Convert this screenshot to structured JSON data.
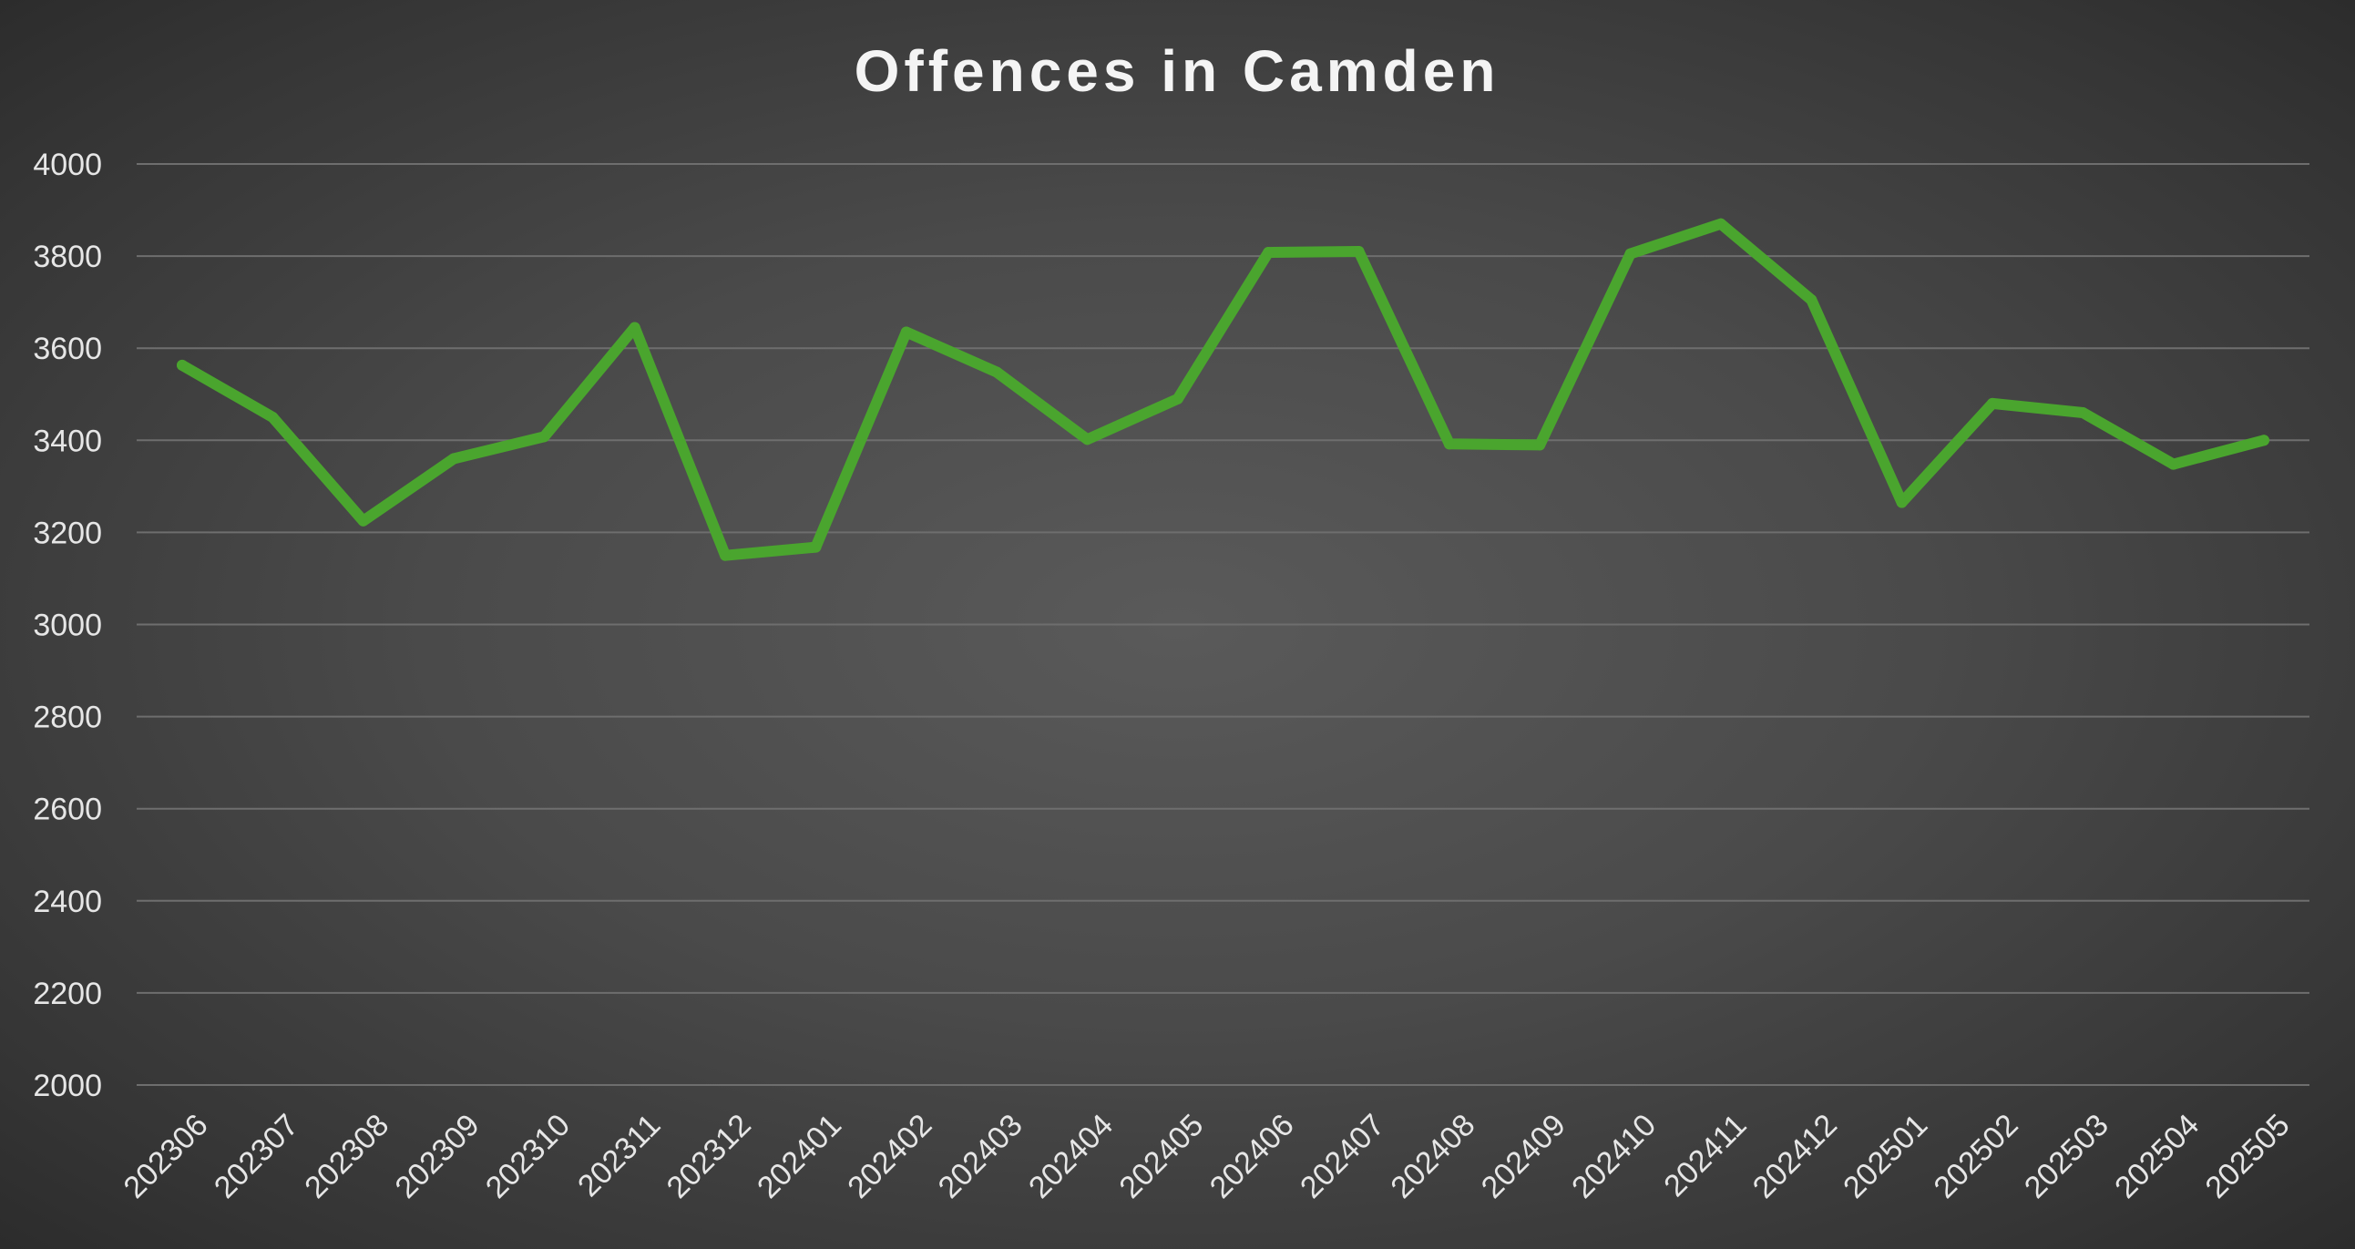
{
  "chart_data": {
    "type": "line",
    "title": "Offences in Camden",
    "xlabel": "",
    "ylabel": "",
    "categories": [
      "202306",
      "202307",
      "202308",
      "202309",
      "202310",
      "202311",
      "202312",
      "202401",
      "202402",
      "202403",
      "202404",
      "202405",
      "202406",
      "202407",
      "202408",
      "202409",
      "202410",
      "202411",
      "202412",
      "202501",
      "202502",
      "202503",
      "202504",
      "202505"
    ],
    "series": [
      {
        "color": "#4aa52e",
        "values": [
          3563,
          3450,
          3225,
          3360,
          3408,
          3645,
          3150,
          3168,
          3635,
          3548,
          3402,
          3490,
          3808,
          3810,
          3392,
          3390,
          3805,
          3870,
          3705,
          3265,
          3480,
          3460,
          3348,
          3400
        ]
      }
    ],
    "ylim": [
      2000,
      4000
    ],
    "yticks": [
      2000,
      2200,
      2400,
      2600,
      2800,
      3000,
      3200,
      3400,
      3600,
      3800,
      4000
    ],
    "grid": true,
    "legend": "none",
    "colors": {
      "title": "#f4f4f4",
      "tick_label": "#e6e6e6",
      "gridline": "#6e6e6e"
    }
  }
}
